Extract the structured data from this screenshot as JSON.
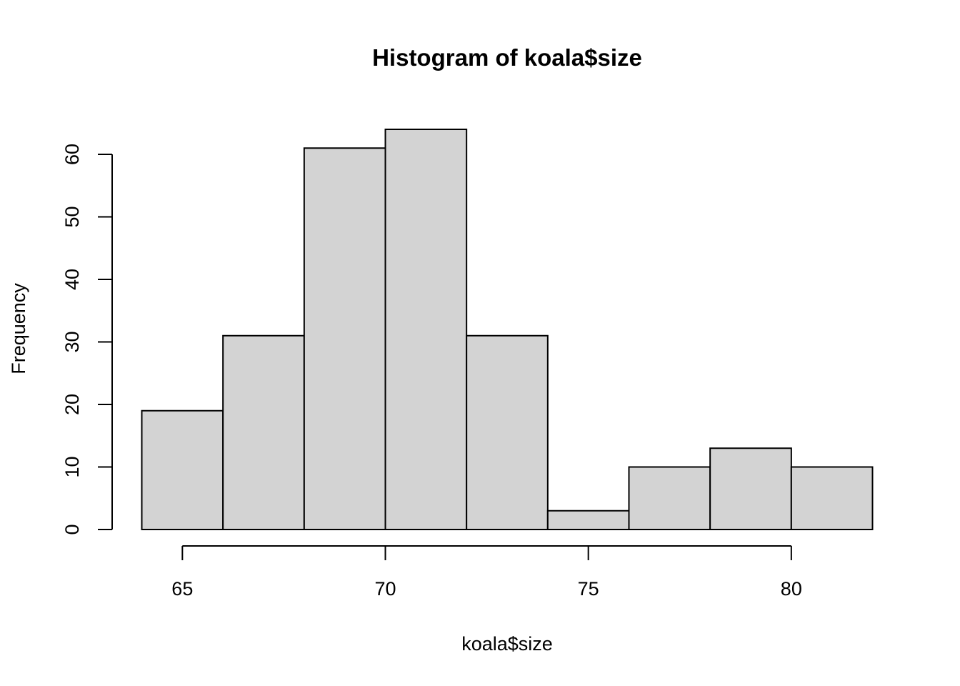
{
  "chart_data": {
    "type": "bar",
    "title": "Histogram of koala$size",
    "xlabel": "koala$size",
    "ylabel": "Frequency",
    "bins": [
      {
        "start": 64,
        "end": 66,
        "count": 19
      },
      {
        "start": 66,
        "end": 68,
        "count": 31
      },
      {
        "start": 68,
        "end": 70,
        "count": 61
      },
      {
        "start": 70,
        "end": 72,
        "count": 64
      },
      {
        "start": 72,
        "end": 74,
        "count": 31
      },
      {
        "start": 74,
        "end": 76,
        "count": 3
      },
      {
        "start": 76,
        "end": 78,
        "count": 10
      },
      {
        "start": 78,
        "end": 80,
        "count": 13
      },
      {
        "start": 80,
        "end": 82,
        "count": 10
      }
    ],
    "x_ticks": [
      65,
      70,
      75,
      80
    ],
    "y_ticks": [
      0,
      10,
      20,
      30,
      40,
      50,
      60
    ],
    "xlim": [
      64,
      82
    ],
    "ylim": [
      0,
      64
    ],
    "bar_fill": "#d3d3d3",
    "grid": false,
    "legend": "none"
  }
}
